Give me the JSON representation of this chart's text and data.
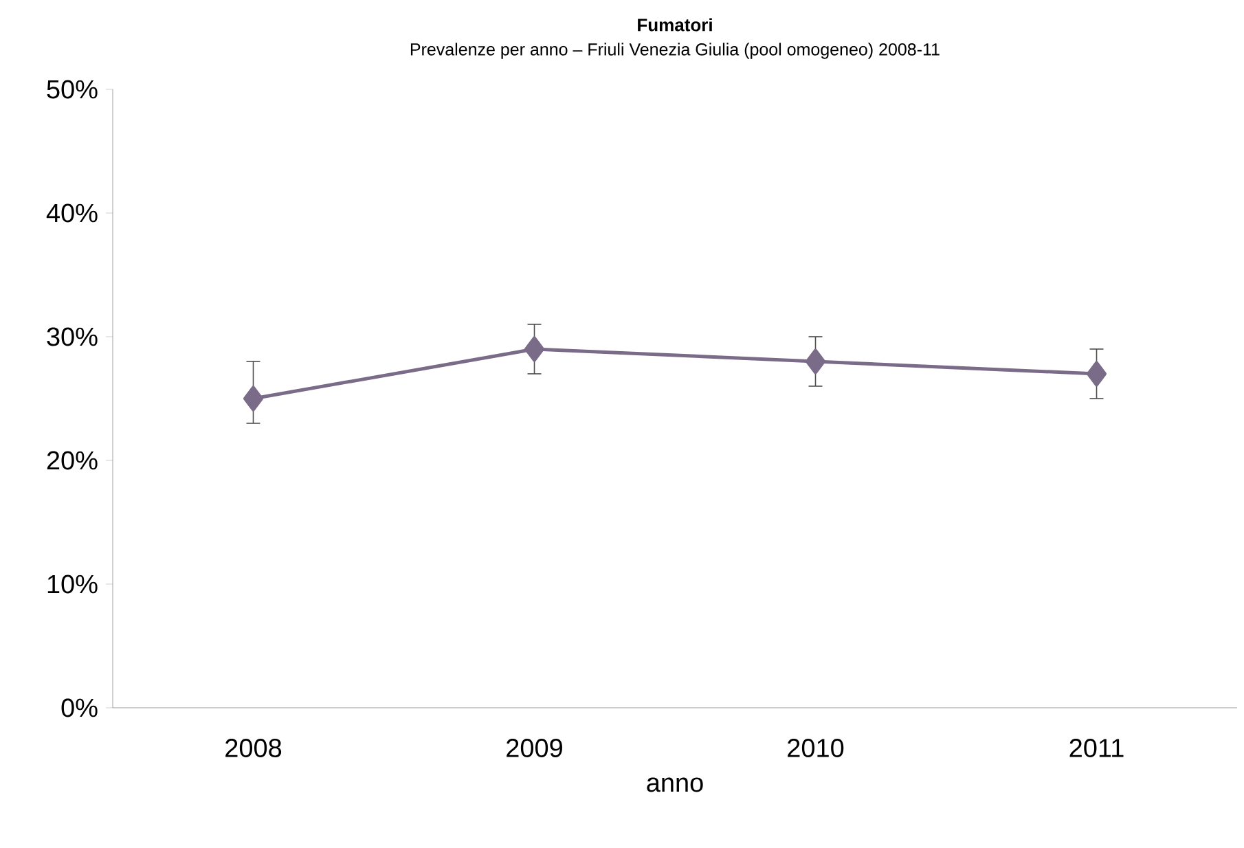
{
  "chart_data": {
    "type": "line",
    "title": "Fumatori",
    "subtitle": "Prevalenze per anno – Friuli Venezia Giulia (pool omogeneo) 2008-11",
    "xlabel": "anno",
    "categories": [
      "2008",
      "2009",
      "2010",
      "2011"
    ],
    "series": [
      {
        "color": "#7a6b88",
        "values": [
          25,
          29,
          28,
          27
        ],
        "errors": [
          [
            23,
            28
          ],
          [
            27,
            31
          ],
          [
            26,
            30
          ],
          [
            25,
            29
          ]
        ]
      }
    ],
    "ylim": [
      0,
      50
    ],
    "yticks": [
      {
        "value": 0,
        "label": "0%"
      },
      {
        "value": 10,
        "label": "10%"
      },
      {
        "value": 20,
        "label": "20%"
      },
      {
        "value": 30,
        "label": "30%"
      },
      {
        "value": 40,
        "label": "40%"
      },
      {
        "value": 50,
        "label": "50%"
      }
    ],
    "marker": "diamond",
    "grid": false,
    "legend": false
  }
}
